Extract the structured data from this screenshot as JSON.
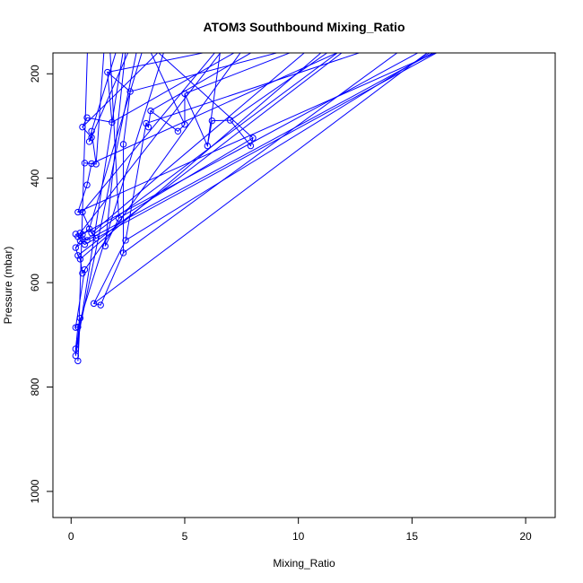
{
  "chart_data": {
    "type": "scatter",
    "title": "ATOM3 Southbound Mixing_Ratio",
    "xlabel": "Mixing_Ratio",
    "ylabel": "Pressure (mbar)",
    "xlim": [
      -0.8,
      21.3
    ],
    "ylim": [
      1050,
      160
    ],
    "y_reversed": true,
    "xticks": [
      0,
      5,
      10,
      15,
      20
    ],
    "yticks": [
      200,
      400,
      600,
      800,
      1000
    ],
    "grid": false,
    "legend": "none",
    "series": [
      {
        "color": "#0000ff",
        "style": "lines+points",
        "points": [
          [
            0.3,
            750
          ],
          [
            0.4,
            668
          ],
          [
            0.2,
            740
          ],
          [
            0.2,
            727
          ],
          [
            0.3,
            685
          ],
          [
            0.2,
            686
          ],
          [
            0.6,
            575
          ],
          [
            0.5,
            582
          ],
          [
            0.4,
            555
          ],
          [
            0.3,
            548
          ],
          [
            0.2,
            533
          ],
          [
            0.4,
            520
          ],
          [
            0.6,
            527
          ],
          [
            0.2,
            507
          ],
          [
            0.3,
            512
          ],
          [
            0.7,
            519
          ],
          [
            0.4,
            505
          ],
          [
            0.5,
            508
          ],
          [
            0.8,
            497
          ],
          [
            1.1,
            515
          ],
          [
            0.9,
            505
          ],
          [
            0.5,
            465
          ],
          [
            0.3,
            465
          ],
          [
            0.7,
            413
          ],
          [
            0.9,
            372
          ],
          [
            0.6,
            371
          ],
          [
            1.1,
            373
          ],
          [
            0.9,
            310
          ],
          [
            0.8,
            330
          ],
          [
            0.9,
            322
          ],
          [
            0.5,
            302
          ],
          [
            0.7,
            284
          ],
          [
            1.8,
            293
          ],
          [
            1.6,
            197
          ],
          [
            2.6,
            234
          ],
          [
            2.3,
            335
          ],
          [
            2.3,
            543
          ],
          [
            1.3,
            643
          ],
          [
            1.0,
            640
          ],
          [
            2.4,
            519
          ],
          [
            3.3,
            295
          ],
          [
            3.4,
            302
          ],
          [
            3.5,
            271
          ],
          [
            4.7,
            310
          ],
          [
            5.0,
            297
          ],
          [
            5.0,
            238
          ],
          [
            6.0,
            338
          ],
          [
            6.2,
            290
          ],
          [
            7.0,
            289
          ],
          [
            7.9,
            338
          ],
          [
            8.0,
            323
          ],
          [
            2.1,
            477
          ],
          [
            1.5,
            530
          ]
        ]
      }
    ],
    "offscreen_targets": [
      [
        0.8,
        40
      ],
      [
        1.6,
        60
      ],
      [
        2.6,
        70
      ],
      [
        3.2,
        90
      ],
      [
        4.5,
        100
      ],
      [
        5.9,
        70
      ],
      [
        8.6,
        90
      ],
      [
        11.2,
        60
      ],
      [
        12.6,
        100
      ],
      [
        13.4,
        110
      ],
      [
        14.8,
        60
      ],
      [
        15.6,
        120
      ],
      [
        16.5,
        150
      ],
      [
        17.8,
        90
      ],
      [
        19.5,
        60
      ],
      [
        21.0,
        40
      ],
      [
        7.1,
        130
      ],
      [
        9.5,
        120
      ],
      [
        4.0,
        30
      ],
      [
        2.0,
        20
      ],
      [
        10.8,
        140
      ],
      [
        6.6,
        145
      ],
      [
        18.6,
        110
      ],
      [
        13.9,
        80
      ],
      [
        12.2,
        150
      ]
    ]
  }
}
